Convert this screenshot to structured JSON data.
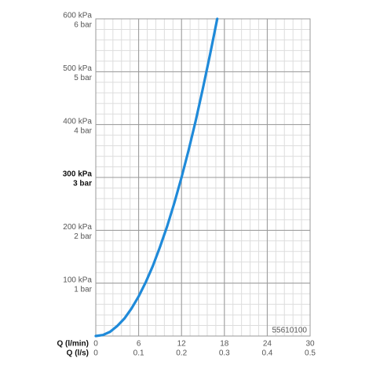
{
  "chart_data": {
    "type": "line",
    "x_label": "Q (l/min)",
    "x2_label": "Q (l/s)",
    "code": "55610100",
    "x": [
      0,
      1,
      2,
      3,
      4,
      5,
      6,
      7,
      8,
      9,
      10,
      11,
      12,
      13,
      14,
      15,
      16,
      17
    ],
    "series": [
      {
        "color": "#1f8ad9",
        "values": [
          0,
          2,
          8,
          19,
          33,
          52,
          75,
          102,
          133,
          169,
          208,
          252,
          300,
          352,
          408,
          469,
          533,
          600
        ]
      }
    ],
    "xlim": [
      0,
      30
    ],
    "xticks": [
      0,
      6,
      12,
      18,
      24,
      30
    ],
    "x2lim": [
      0,
      0.5
    ],
    "x2ticks": [
      0,
      0.1,
      0.2,
      0.3,
      0.4,
      0.5
    ],
    "ylim": [
      0,
      600
    ],
    "yticks": [
      {
        "value": 100,
        "label": "100 kPa"
      },
      {
        "value": 200,
        "label": "200 kPa"
      },
      {
        "value": 300,
        "label": "300 kPa"
      },
      {
        "value": 400,
        "label": "400 kPa"
      },
      {
        "value": 500,
        "label": "500 kPa"
      },
      {
        "value": 600,
        "label": "600 kPa"
      }
    ],
    "ytick_bar_labels": [
      "1 bar",
      "2 bar",
      "3 bar",
      "4 bar",
      "5 bar",
      "6 bar"
    ],
    "bold_ytick": 300,
    "grid": true
  }
}
